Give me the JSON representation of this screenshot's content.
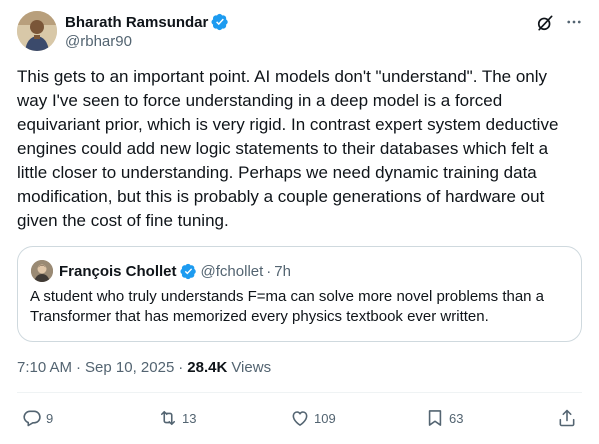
{
  "author": {
    "display_name": "Bharath Ramsundar",
    "handle": "@rbhar90",
    "verified": true
  },
  "tweet": {
    "text": "This gets to an important point. AI models don't \"understand\". The only\nway I've seen to force understanding in a deep model is a forced\nequivariant prior, which is very rigid. In contrast expert system deductive\nengines could add new logic statements to their databases which felt a\nlittle closer to understanding. Perhaps we need dynamic training data\nmodification, but this is probably a couple generations of hardware out\ngiven the cost of fine tuning."
  },
  "quote": {
    "display_name": "François Chollet",
    "handle": "@fchollet",
    "dot": "·",
    "time": "7h",
    "text": "A student who truly understands F=ma can solve more novel problems than a Transformer that has memorized every physics textbook ever written."
  },
  "meta": {
    "time": "7:10 AM",
    "date": "Sep 10, 2025",
    "dot": "·",
    "views_count": "28.4K",
    "views_label": "Views"
  },
  "actions": {
    "replies": "9",
    "reposts": "13",
    "likes": "109",
    "bookmarks": "63"
  },
  "icons": {
    "header": [
      "grok-icon",
      "more-icon"
    ],
    "actions": [
      "reply-icon",
      "repost-icon",
      "like-icon",
      "bookmark-icon",
      "share-icon"
    ]
  },
  "colors": {
    "text": "#0f1419",
    "secondary": "#536471",
    "verified": "#1d9bf0",
    "border": "#cfd9de"
  }
}
